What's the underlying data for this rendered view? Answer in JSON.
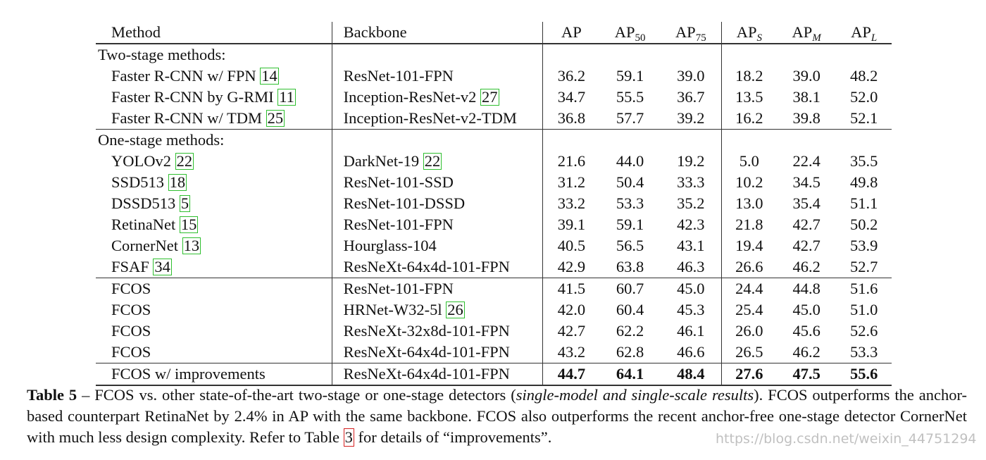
{
  "table": {
    "headers": {
      "method": "Method",
      "backbone": "Backbone",
      "ap": "AP",
      "ap50_base": "AP",
      "ap50_sub": "50",
      "ap75_base": "AP",
      "ap75_sub": "75",
      "aps_base": "AP",
      "aps_sub": "S",
      "apm_base": "AP",
      "apm_sub": "M",
      "apl_base": "AP",
      "apl_sub": "L"
    },
    "section_two_stage": "Two-stage methods:",
    "section_one_stage": "One-stage methods:",
    "rows": [
      {
        "method": "Faster R-CNN w/ FPN ",
        "cite": "14",
        "backbone": "ResNet-101-FPN",
        "bcite": "",
        "vals": [
          "36.2",
          "59.1",
          "39.0",
          "18.2",
          "39.0",
          "48.2"
        ]
      },
      {
        "method": "Faster R-CNN by G-RMI ",
        "cite": "11",
        "backbone": "Inception-ResNet-v2 ",
        "bcite": "27",
        "vals": [
          "34.7",
          "55.5",
          "36.7",
          "13.5",
          "38.1",
          "52.0"
        ]
      },
      {
        "method": "Faster R-CNN w/ TDM ",
        "cite": "25",
        "backbone": "Inception-ResNet-v2-TDM",
        "bcite": "",
        "vals": [
          "36.8",
          "57.7",
          "39.2",
          "16.2",
          "39.8",
          "52.1"
        ]
      },
      {
        "method": "YOLOv2 ",
        "cite": "22",
        "backbone": "DarkNet-19 ",
        "bcite": "22",
        "vals": [
          "21.6",
          "44.0",
          "19.2",
          "5.0",
          "22.4",
          "35.5"
        ]
      },
      {
        "method": "SSD513 ",
        "cite": "18",
        "backbone": "ResNet-101-SSD",
        "bcite": "",
        "vals": [
          "31.2",
          "50.4",
          "33.3",
          "10.2",
          "34.5",
          "49.8"
        ]
      },
      {
        "method": "DSSD513 ",
        "cite": "5",
        "backbone": "ResNet-101-DSSD",
        "bcite": "",
        "vals": [
          "33.2",
          "53.3",
          "35.2",
          "13.0",
          "35.4",
          "51.1"
        ]
      },
      {
        "method": "RetinaNet ",
        "cite": "15",
        "backbone": "ResNet-101-FPN",
        "bcite": "",
        "vals": [
          "39.1",
          "59.1",
          "42.3",
          "21.8",
          "42.7",
          "50.2"
        ]
      },
      {
        "method": "CornerNet ",
        "cite": "13",
        "backbone": "Hourglass-104",
        "bcite": "",
        "vals": [
          "40.5",
          "56.5",
          "43.1",
          "19.4",
          "42.7",
          "53.9"
        ]
      },
      {
        "method": "FSAF ",
        "cite": "34",
        "backbone": "ResNeXt-64x4d-101-FPN",
        "bcite": "",
        "vals": [
          "42.9",
          "63.8",
          "46.3",
          "26.6",
          "46.2",
          "52.7"
        ]
      },
      {
        "method": "FCOS",
        "cite": "",
        "backbone": "ResNet-101-FPN",
        "bcite": "",
        "vals": [
          "41.5",
          "60.7",
          "45.0",
          "24.4",
          "44.8",
          "51.6"
        ]
      },
      {
        "method": "FCOS",
        "cite": "",
        "backbone": "HRNet-W32-5l ",
        "bcite": "26",
        "vals": [
          "42.0",
          "60.4",
          "45.3",
          "25.4",
          "45.0",
          "51.0"
        ]
      },
      {
        "method": "FCOS",
        "cite": "",
        "backbone": "ResNeXt-32x8d-101-FPN",
        "bcite": "",
        "vals": [
          "42.7",
          "62.2",
          "46.1",
          "26.0",
          "45.6",
          "52.6"
        ]
      },
      {
        "method": "FCOS",
        "cite": "",
        "backbone": "ResNeXt-64x4d-101-FPN",
        "bcite": "",
        "vals": [
          "43.2",
          "62.8",
          "46.6",
          "26.5",
          "46.2",
          "53.3"
        ]
      },
      {
        "method": "FCOS w/ improvements",
        "cite": "",
        "backbone": "ResNeXt-64x4d-101-FPN",
        "bcite": "",
        "vals": [
          "44.7",
          "64.1",
          "48.4",
          "27.6",
          "47.5",
          "55.6"
        ]
      }
    ]
  },
  "caption": {
    "label": "Table 5",
    "p1": " – FCOS vs. other state-of-the-art two-stage or one-stage detectors (",
    "italic": "single-model and single-scale results",
    "p2": "). FCOS outperforms the anchor-based counterpart RetinaNet by ",
    "math": "2.4%",
    "p3": " in AP with the same backbone. FCOS also outperforms the recent anchor-free one-stage detector CornerNet with much less design complexity. Refer to Table ",
    "ref": "3",
    "p4": " for details of “improvements”."
  },
  "watermark": "https://blog.csdn.net/weixin_44751294"
}
